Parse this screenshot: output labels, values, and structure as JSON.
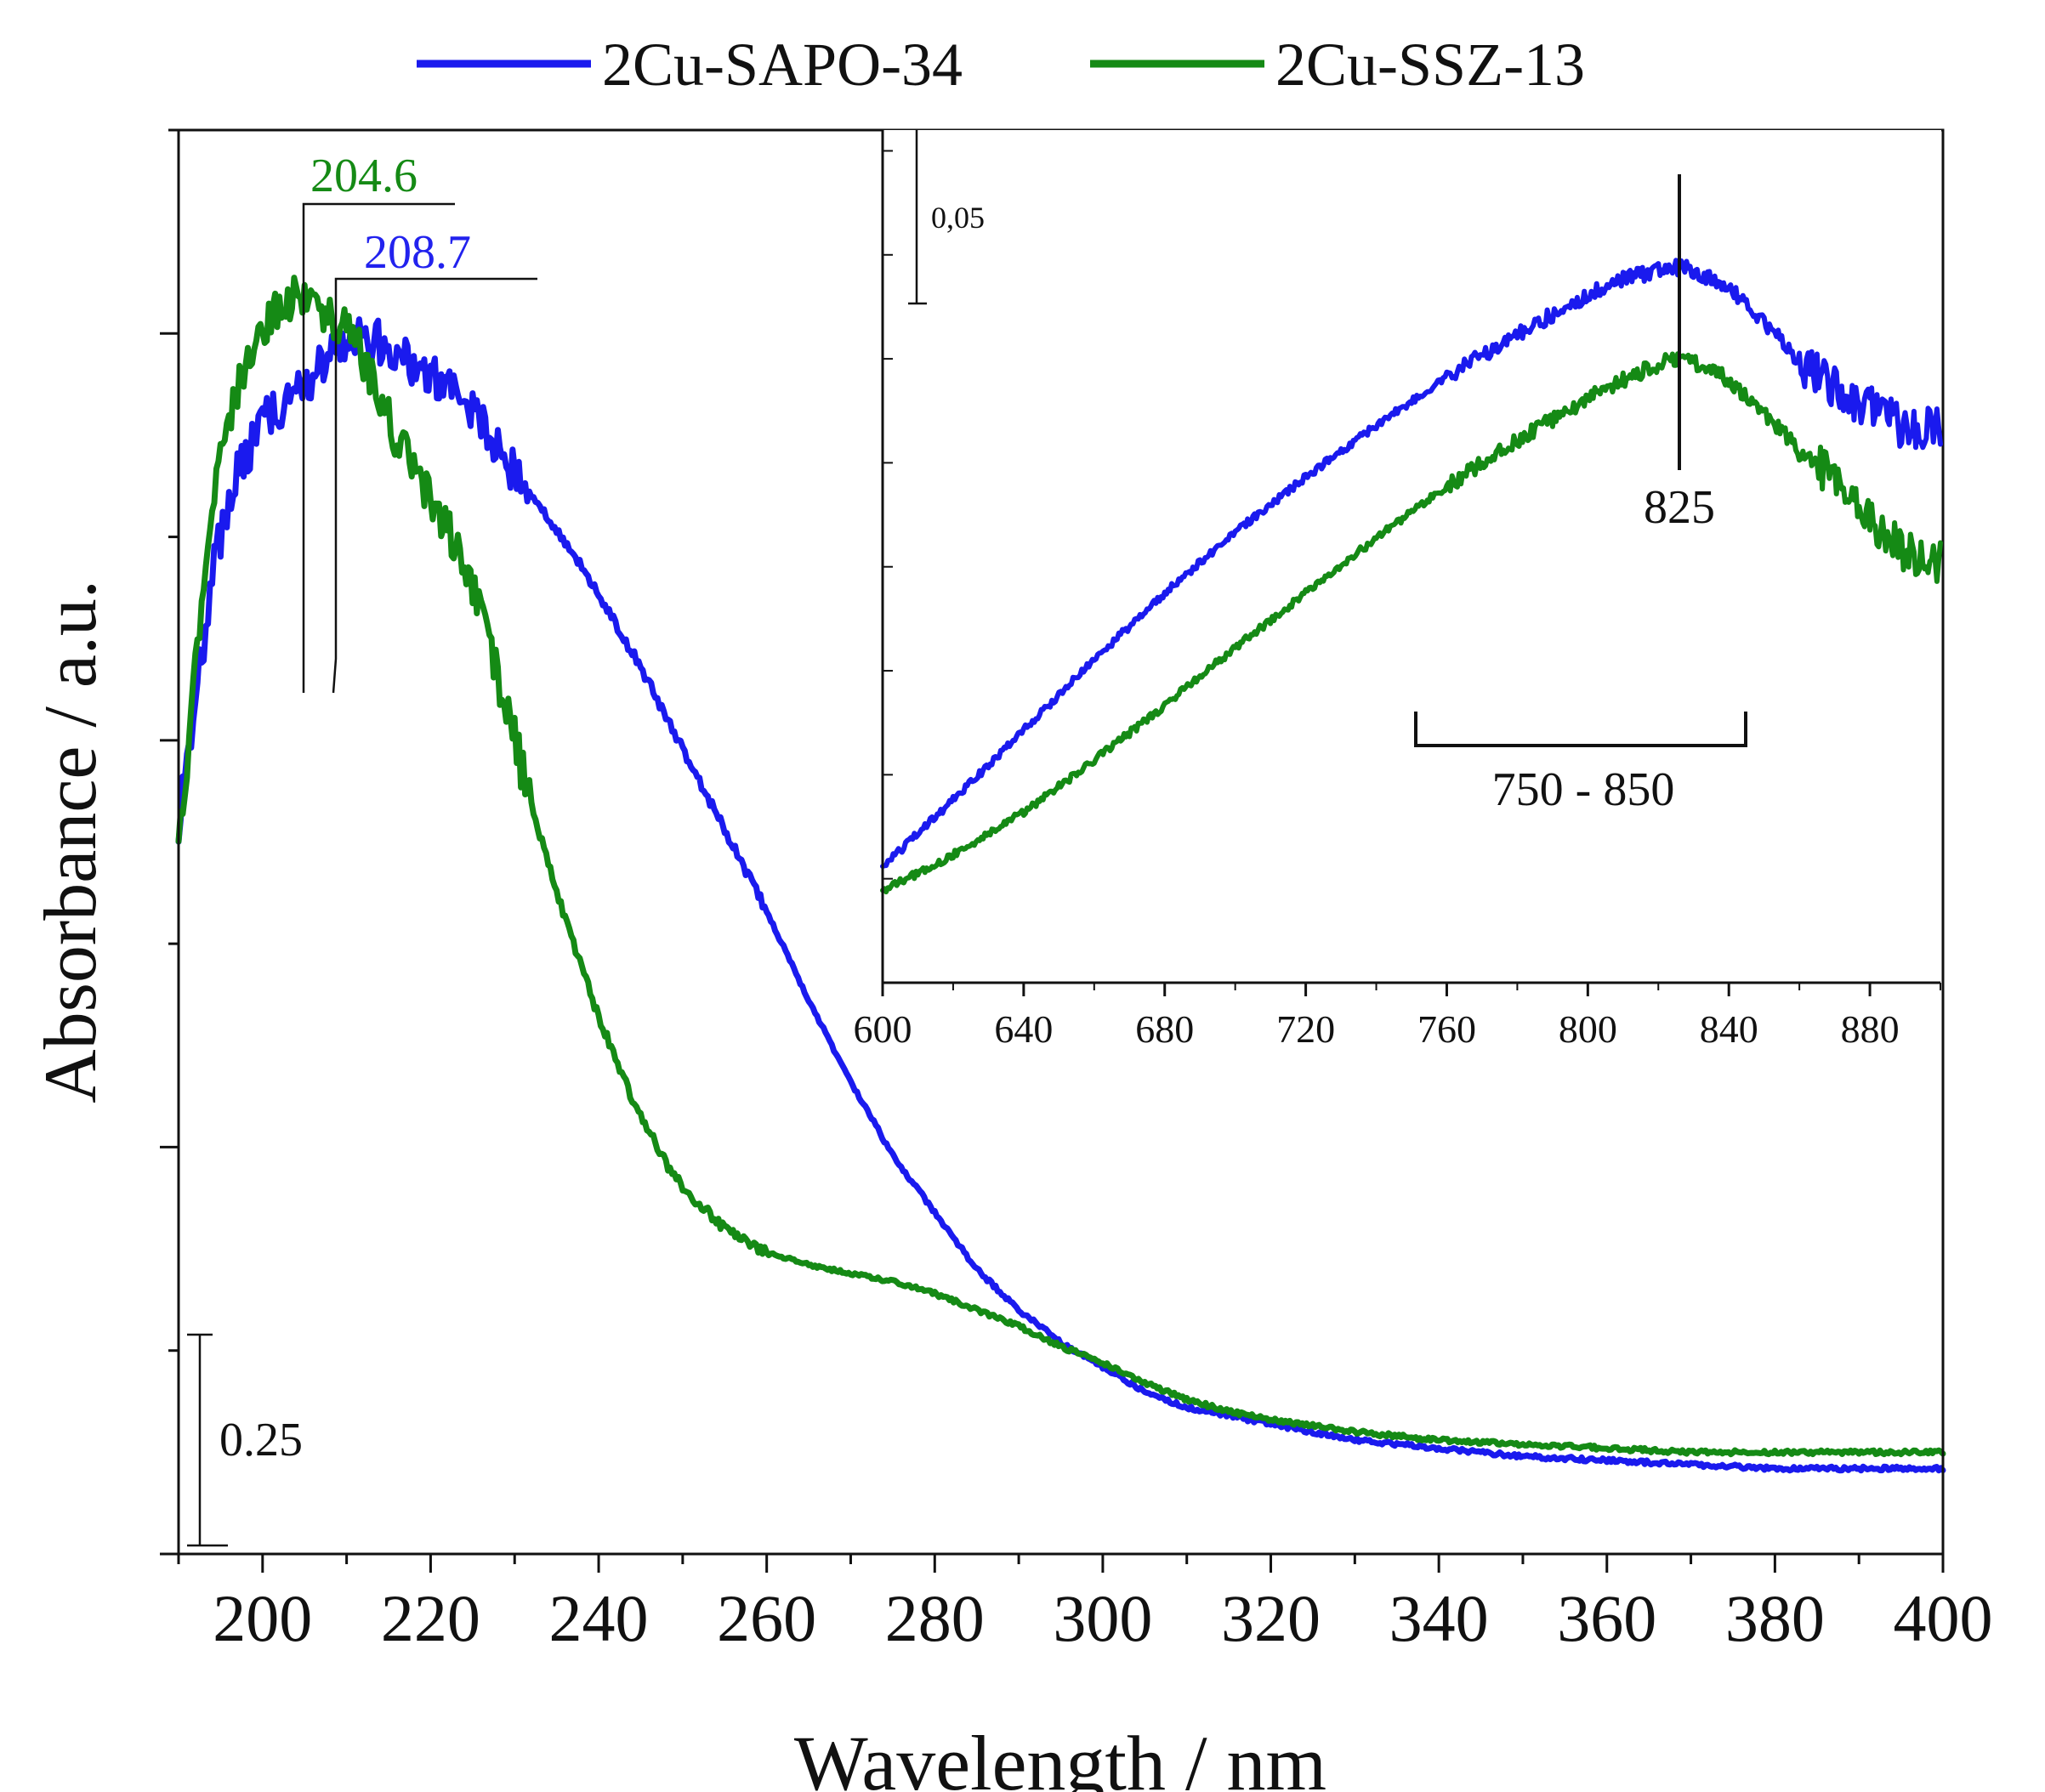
{
  "chart_data": [
    {
      "type": "line",
      "title": "",
      "xlabel": "Wavelength / nm",
      "ylabel": "Absorbance / a.u.",
      "xlim": [
        190,
        400
      ],
      "ylim": [
        0,
        1.75
      ],
      "x_ticks": [
        "200",
        "220",
        "240",
        "260",
        "280",
        "300",
        "320",
        "340",
        "360",
        "380",
        "400"
      ],
      "legend": {
        "placement": "top-center",
        "entries": [
          {
            "label": "2Cu-SAPO-34",
            "color": "#1a1aee"
          },
          {
            "label": "2Cu-SSZ-13",
            "color": "#158a15"
          }
        ]
      },
      "scale_bar": {
        "label": "0.25",
        "value": 0.25,
        "from": 0.02,
        "to": 0.27
      },
      "annotations": [
        {
          "label": "204.6",
          "x": 204.6,
          "color": "#158a15"
        },
        {
          "label": "208.7",
          "x": 208.7,
          "color": "#1a1aee"
        }
      ],
      "series": [
        {
          "name": "2Cu-SAPO-34",
          "color": "#1a1aee",
          "x": [
            190,
            192,
            194,
            196,
            198,
            200,
            202,
            204,
            206,
            208,
            210,
            212,
            214,
            216,
            218,
            220,
            222,
            224,
            226,
            228,
            230,
            235,
            240,
            245,
            250,
            255,
            260,
            265,
            270,
            275,
            280,
            285,
            290,
            295,
            300,
            305,
            310,
            315,
            320,
            330,
            340,
            350,
            360,
            370,
            380,
            390,
            400
          ],
          "y": [
            0.9,
            1.05,
            1.2,
            1.3,
            1.35,
            1.39,
            1.41,
            1.43,
            1.45,
            1.48,
            1.49,
            1.49,
            1.49,
            1.48,
            1.46,
            1.45,
            1.43,
            1.41,
            1.39,
            1.36,
            1.33,
            1.26,
            1.18,
            1.09,
            0.99,
            0.89,
            0.79,
            0.68,
            0.58,
            0.49,
            0.42,
            0.35,
            0.3,
            0.26,
            0.23,
            0.2,
            0.18,
            0.17,
            0.16,
            0.14,
            0.13,
            0.12,
            0.115,
            0.11,
            0.105,
            0.105,
            0.105
          ]
        },
        {
          "name": "2Cu-SSZ-13",
          "color": "#158a15",
          "x": [
            190,
            192,
            194,
            196,
            198,
            200,
            202,
            204,
            206,
            208,
            210,
            212,
            214,
            216,
            218,
            220,
            222,
            224,
            226,
            228,
            230,
            232,
            234,
            236,
            238,
            240,
            242,
            244,
            246,
            248,
            250,
            255,
            260,
            265,
            270,
            275,
            280,
            285,
            290,
            295,
            300,
            305,
            310,
            315,
            320,
            330,
            340,
            350,
            360,
            370,
            380,
            390,
            400
          ],
          "y": [
            0.88,
            1.08,
            1.28,
            1.4,
            1.47,
            1.51,
            1.53,
            1.55,
            1.54,
            1.52,
            1.5,
            1.47,
            1.42,
            1.37,
            1.33,
            1.3,
            1.26,
            1.21,
            1.15,
            1.08,
            1.0,
            0.92,
            0.85,
            0.78,
            0.72,
            0.66,
            0.61,
            0.56,
            0.52,
            0.48,
            0.45,
            0.4,
            0.37,
            0.355,
            0.345,
            0.335,
            0.32,
            0.3,
            0.28,
            0.255,
            0.235,
            0.21,
            0.19,
            0.175,
            0.165,
            0.15,
            0.14,
            0.135,
            0.13,
            0.125,
            0.125,
            0.125,
            0.125
          ]
        }
      ]
    },
    {
      "type": "line",
      "title": "",
      "xlabel": "",
      "ylabel": "",
      "placement": "inset top-right",
      "xlim": [
        600,
        900
      ],
      "ylim": [
        0,
        0.28
      ],
      "x_ticks": [
        "600",
        "640",
        "680",
        "720",
        "760",
        "800",
        "840",
        "880"
      ],
      "scale_bar": {
        "label": "0,05",
        "value": 0.05,
        "from": 0.22,
        "to": 0.27
      },
      "annotations": [
        {
          "label": "825",
          "x": 825,
          "kind": "peak"
        },
        {
          "label": "750 - 850",
          "from": 750,
          "to": 850,
          "kind": "range"
        }
      ],
      "series": [
        {
          "name": "2Cu-SAPO-34",
          "color": "#1a1aee",
          "x": [
            600,
            620,
            640,
            660,
            680,
            700,
            720,
            740,
            760,
            780,
            800,
            810,
            820,
            825,
            830,
            840,
            850,
            860,
            870,
            880,
            890,
            900
          ],
          "y": [
            0.038,
            0.06,
            0.083,
            0.106,
            0.128,
            0.148,
            0.166,
            0.183,
            0.199,
            0.213,
            0.226,
            0.231,
            0.234,
            0.235,
            0.234,
            0.228,
            0.217,
            0.204,
            0.195,
            0.189,
            0.182,
            0.182
          ]
        },
        {
          "name": "2Cu-SSZ-13",
          "color": "#158a15",
          "x": [
            600,
            620,
            640,
            660,
            680,
            700,
            720,
            740,
            760,
            780,
            800,
            810,
            820,
            825,
            830,
            840,
            850,
            860,
            870,
            880,
            890,
            900
          ],
          "y": [
            0.03,
            0.042,
            0.056,
            0.073,
            0.091,
            0.11,
            0.128,
            0.146,
            0.163,
            0.178,
            0.192,
            0.198,
            0.203,
            0.205,
            0.204,
            0.198,
            0.187,
            0.175,
            0.165,
            0.152,
            0.142,
            0.138
          ]
        }
      ]
    }
  ]
}
